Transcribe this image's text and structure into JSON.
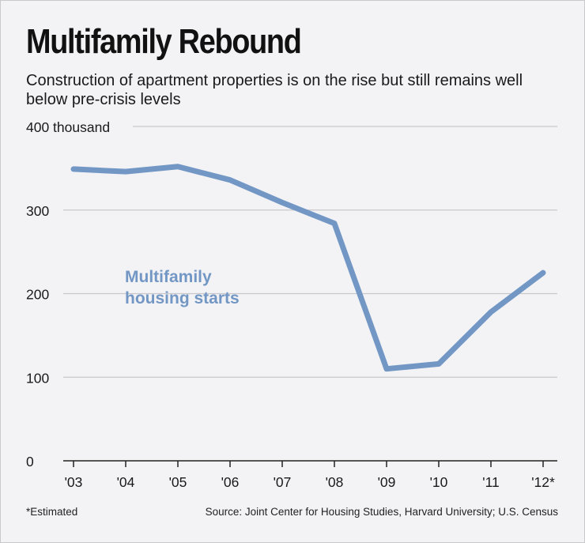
{
  "chart_data": {
    "type": "line",
    "title": "Multifamily Rebound",
    "subtitle": "Construction of apartment properties is on the rise but still remains well below pre-crisis levels",
    "categories": [
      "'03",
      "'04",
      "'05",
      "'06",
      "'07",
      "'08",
      "'09",
      "'10",
      "'11",
      "'12*"
    ],
    "series": [
      {
        "name": "Multifamily housing starts",
        "values": [
          349,
          346,
          352,
          336,
          309,
          284,
          110,
          116,
          178,
          225
        ],
        "color": "#7397c4"
      }
    ],
    "yticks": [
      {
        "value": 0,
        "label": "0"
      },
      {
        "value": 100,
        "label": "100"
      },
      {
        "value": 200,
        "label": "200"
      },
      {
        "value": 300,
        "label": "300"
      },
      {
        "value": 400,
        "label": "400 thousand"
      }
    ],
    "ylim": [
      0,
      400
    ],
    "grid": true,
    "series_label_lines": [
      "Multifamily",
      "housing starts"
    ],
    "footnote": "*Estimated",
    "source": "Source: Joint Center for Housing Studies, Harvard University; U.S. Census"
  }
}
